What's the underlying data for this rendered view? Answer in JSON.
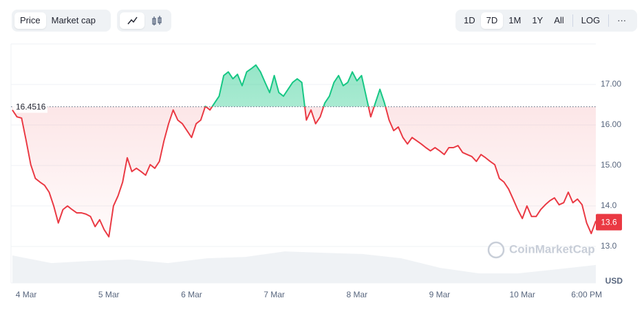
{
  "toolbar": {
    "metric_tabs": [
      "Price",
      "Market cap"
    ],
    "active_metric": "Price",
    "ranges": [
      "1D",
      "7D",
      "1M",
      "1Y",
      "All"
    ],
    "active_range": "7D",
    "log": "LOG",
    "more": "···"
  },
  "chart_data": {
    "type": "line",
    "y_unit": "USD",
    "watermark": "CoinMarketCap",
    "reference_price": 16.4516,
    "current_price": 13.6,
    "categories": [
      null,
      null,
      null,
      "4 Mar",
      null,
      null,
      null,
      null,
      null,
      null,
      null,
      null,
      null,
      null,
      null,
      null,
      null,
      null,
      null,
      null,
      null,
      "5 Mar",
      null,
      null,
      null,
      null,
      null,
      null,
      null,
      null,
      null,
      null,
      null,
      null,
      null,
      null,
      null,
      null,
      null,
      "6 Mar",
      null,
      null,
      null,
      null,
      null,
      null,
      null,
      null,
      null,
      null,
      null,
      null,
      null,
      null,
      null,
      null,
      null,
      "7 Mar",
      null,
      null,
      null,
      null,
      null,
      null,
      null,
      null,
      null,
      null,
      null,
      null,
      null,
      null,
      null,
      null,
      null,
      "8 Mar",
      null,
      null,
      null,
      null,
      null,
      null,
      null,
      null,
      null,
      null,
      null,
      null,
      null,
      null,
      null,
      null,
      null,
      "9 Mar",
      null,
      null,
      null,
      null,
      null,
      null,
      null,
      null,
      null,
      null,
      null,
      null,
      null,
      null,
      null,
      null,
      null,
      "10 Mar",
      null,
      null,
      null,
      null,
      null,
      null,
      null,
      null,
      null,
      null,
      null,
      null,
      null,
      "6:00 PM",
      null,
      null
    ],
    "series": [
      {
        "name": "Price",
        "up_color": "#16c784",
        "down_color": "#ea3943",
        "values": [
          16.37,
          16.2,
          16.17,
          15.61,
          15.02,
          14.68,
          14.59,
          14.51,
          14.34,
          14.0,
          13.58,
          13.91,
          14.0,
          13.91,
          13.83,
          13.83,
          13.8,
          13.74,
          13.49,
          13.66,
          13.41,
          13.24,
          14.0,
          14.25,
          14.59,
          15.19,
          14.85,
          14.93,
          14.85,
          14.76,
          15.02,
          14.93,
          15.1,
          15.61,
          16.03,
          16.37,
          16.12,
          16.03,
          15.86,
          15.69,
          16.03,
          16.12,
          16.46,
          16.37,
          16.54,
          16.71,
          17.22,
          17.31,
          17.14,
          17.25,
          16.97,
          17.31,
          17.39,
          17.48,
          17.31,
          17.05,
          16.8,
          17.22,
          16.8,
          16.71,
          16.88,
          17.05,
          17.14,
          17.05,
          16.12,
          16.37,
          16.03,
          16.2,
          16.54,
          16.71,
          17.05,
          17.22,
          16.97,
          17.05,
          17.31,
          17.09,
          17.22,
          16.71,
          16.2,
          16.54,
          16.88,
          16.54,
          16.12,
          15.86,
          15.95,
          15.69,
          15.53,
          15.69,
          15.61,
          15.53,
          15.44,
          15.36,
          15.44,
          15.36,
          15.27,
          15.44,
          15.44,
          15.49,
          15.32,
          15.27,
          15.22,
          15.1,
          15.27,
          15.19,
          15.1,
          15.02,
          14.68,
          14.59,
          14.42,
          14.17,
          13.91,
          13.69,
          14.0,
          13.74,
          13.74,
          13.91,
          14.03,
          14.13,
          14.2,
          14.03,
          14.08,
          14.34,
          14.08,
          14.17,
          14.03,
          13.58,
          13.32,
          13.63
        ]
      }
    ],
    "volume": {
      "color": "#eff2f5",
      "ylim": [
        0,
        100
      ],
      "values": [
        11.5,
        8.3,
        9.2,
        9.8,
        8.3,
        10.3,
        10.9,
        13.2,
        12.6,
        12.1,
        10.3,
        6.3,
        4.0,
        4.0,
        5.7,
        7.5
      ]
    },
    "ylim": [
      12.1,
      18.0
    ],
    "yticks": [
      {
        "value": 17,
        "label": "17.00"
      },
      {
        "value": 16,
        "label": "16.00"
      },
      {
        "value": 15,
        "label": "15.00"
      },
      {
        "value": 14,
        "label": "14.0"
      },
      {
        "value": 13,
        "label": "13.0"
      }
    ],
    "grid": true
  }
}
